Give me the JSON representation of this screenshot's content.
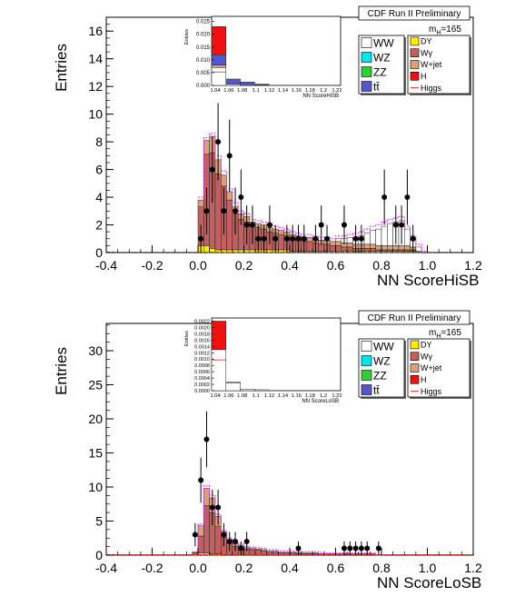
{
  "chart_data": [
    {
      "type": "bar",
      "panel": "top",
      "banner": "CDF Run II Preliminary",
      "mass_label": "m",
      "mass_sub": "H",
      "mass_value": "=165",
      "xlabel": "NN ScoreHiSB",
      "ylabel": "Entries",
      "xlim": [
        -0.4,
        1.2
      ],
      "ylim": [
        0,
        17
      ],
      "x_ticks": [
        "-0.4",
        "-0.2",
        "0.0",
        "0.2",
        "0.4",
        "0.6",
        "0.8",
        "1.0",
        "1.2"
      ],
      "y_ticks": [
        "0",
        "2",
        "4",
        "6",
        "8",
        "10",
        "12",
        "14",
        "16"
      ],
      "y_tick_values": [
        0,
        2,
        4,
        6,
        8,
        10,
        12,
        14,
        16
      ],
      "legend_left": [
        {
          "label": "WW",
          "color": "#ffffff"
        },
        {
          "label": "WZ",
          "color": "#00e5ee"
        },
        {
          "label": "ZZ",
          "color": "#33cc33"
        },
        {
          "label": "tt̄",
          "color": "#5555cc"
        }
      ],
      "legend_right": [
        {
          "label": "DY",
          "color": "#ffee00"
        },
        {
          "label": "Wγ",
          "color": "#c06060"
        },
        {
          "label": "W+jet",
          "color": "#d9a27a"
        },
        {
          "label": "H",
          "color": "#ee1111"
        },
        {
          "label": "Higgs",
          "color": "#ee3333",
          "line": true
        }
      ],
      "stack_colors": {
        "DY": "#ffee00",
        "Wgamma": "#c06060",
        "Wjet": "#d9a27a",
        "ttbar": "#5555cc",
        "WW": "#ffffff",
        "signal": "#ee1111",
        "fit": "#ee33ee"
      },
      "bin_width": 0.025,
      "bins_x": [
        0.0,
        0.025,
        0.05,
        0.075,
        0.1,
        0.125,
        0.15,
        0.175,
        0.2,
        0.225,
        0.25,
        0.275,
        0.3,
        0.325,
        0.35,
        0.375,
        0.4,
        0.425,
        0.45,
        0.475,
        0.5,
        0.525,
        0.55,
        0.575,
        0.6,
        0.625,
        0.65,
        0.675,
        0.7,
        0.725,
        0.75,
        0.775,
        0.8,
        0.825,
        0.85,
        0.875,
        0.9,
        0.925,
        0.95,
        0.975
      ],
      "dy": [
        0.5,
        0.5,
        0.3,
        0.2,
        0.2,
        0.2,
        0.2,
        0.2,
        0.2,
        0.2,
        0.2,
        0.2,
        0.2,
        0.2,
        0.2,
        0.2,
        0.1,
        0.1,
        0.1,
        0.1,
        0.1,
        0.1,
        0.1,
        0.1,
        0.1,
        0.1,
        0.1,
        0.1,
        0.1,
        0.1,
        0.1,
        0.1,
        0.1,
        0.1,
        0.1,
        0.1,
        0.1,
        0.1,
        0.0,
        0.0
      ],
      "wgamma": [
        2.8,
        6.6,
        6.9,
        5.5,
        4.6,
        3.6,
        2.6,
        2.2,
        2.0,
        1.7,
        1.6,
        1.5,
        1.3,
        1.2,
        1.1,
        1.0,
        0.9,
        0.8,
        0.7,
        0.7,
        0.6,
        0.5,
        0.5,
        0.4,
        0.4,
        0.3,
        0.3,
        0.2,
        0.2,
        0.2,
        0.2,
        0.1,
        0.1,
        0.1,
        0.1,
        0.1,
        0.1,
        0.1,
        0.0,
        0.0
      ],
      "wjet": [
        0.5,
        1.0,
        1.2,
        1.0,
        0.8,
        0.6,
        0.5,
        0.4,
        0.4,
        0.3,
        0.3,
        0.3,
        0.3,
        0.3,
        0.3,
        0.3,
        0.3,
        0.3,
        0.3,
        0.3,
        0.3,
        0.3,
        0.3,
        0.3,
        0.3,
        0.3,
        0.3,
        0.3,
        0.3,
        0.3,
        0.3,
        0.3,
        0.3,
        0.3,
        0.3,
        0.3,
        0.3,
        0.2,
        0.1,
        0.0
      ],
      "ttbar": [
        0.0,
        0.0,
        0.0,
        0.0,
        0.0,
        0.0,
        0.0,
        0.0,
        0.0,
        0.0,
        0.0,
        0.0,
        0.0,
        0.0,
        0.0,
        0.0,
        0.0,
        0.0,
        0.0,
        0.0,
        0.0,
        0.0,
        0.0,
        0.0,
        0.0,
        0.0,
        0.0,
        0.0,
        0.0,
        0.0,
        0.0,
        0.0,
        0.0,
        0.0,
        0.0,
        0.0,
        0.0,
        0.0,
        0.0,
        0.0
      ],
      "ww": [
        0.0,
        0.0,
        0.0,
        0.0,
        0.0,
        0.0,
        0.0,
        0.0,
        0.0,
        0.0,
        0.0,
        0.0,
        0.0,
        0.0,
        0.0,
        0.0,
        0.0,
        0.0,
        0.0,
        0.0,
        0.0,
        0.0,
        0.0,
        0.0,
        0.2,
        0.3,
        0.4,
        0.5,
        0.6,
        0.8,
        1.0,
        1.2,
        1.4,
        1.6,
        1.7,
        1.8,
        1.2,
        0.6,
        0.3,
        0.0
      ],
      "fit_top": [
        4.0,
        8.3,
        8.6,
        7.0,
        5.9,
        4.6,
        3.6,
        3.0,
        2.8,
        2.4,
        2.3,
        2.2,
        2.0,
        1.9,
        1.8,
        1.7,
        1.5,
        1.4,
        1.3,
        1.3,
        1.2,
        1.1,
        1.1,
        1.0,
        1.2,
        1.2,
        1.3,
        1.4,
        1.5,
        1.7,
        1.9,
        2.0,
        2.2,
        2.4,
        2.5,
        2.6,
        1.9,
        1.2,
        0.6,
        0.1
      ],
      "data_points": [
        {
          "x": 0.0125,
          "y": 1.0,
          "err": 1.0
        },
        {
          "x": 0.0375,
          "y": 3.0,
          "err": 1.7
        },
        {
          "x": 0.0625,
          "y": 6.0,
          "err": 2.4
        },
        {
          "x": 0.0875,
          "y": 8.0,
          "err": 2.8
        },
        {
          "x": 0.1125,
          "y": 3.0,
          "err": 1.7
        },
        {
          "x": 0.1375,
          "y": 7.0,
          "err": 2.6
        },
        {
          "x": 0.1625,
          "y": 3.0,
          "err": 1.7
        },
        {
          "x": 0.1875,
          "y": 4.0,
          "err": 2.0
        },
        {
          "x": 0.2125,
          "y": 2.0,
          "err": 1.4
        },
        {
          "x": 0.2375,
          "y": 2.0,
          "err": 1.4
        },
        {
          "x": 0.2625,
          "y": 1.0,
          "err": 1.0
        },
        {
          "x": 0.2875,
          "y": 1.0,
          "err": 1.0
        },
        {
          "x": 0.3125,
          "y": 2.0,
          "err": 1.4
        },
        {
          "x": 0.3375,
          "y": 1.0,
          "err": 1.0
        },
        {
          "x": 0.3875,
          "y": 1.0,
          "err": 1.0
        },
        {
          "x": 0.4125,
          "y": 1.0,
          "err": 1.0
        },
        {
          "x": 0.4375,
          "y": 1.0,
          "err": 1.0
        },
        {
          "x": 0.4625,
          "y": 1.0,
          "err": 1.0
        },
        {
          "x": 0.5125,
          "y": 1.0,
          "err": 1.0
        },
        {
          "x": 0.5375,
          "y": 2.0,
          "err": 1.4
        },
        {
          "x": 0.5625,
          "y": 1.0,
          "err": 1.0
        },
        {
          "x": 0.6375,
          "y": 2.0,
          "err": 1.4
        },
        {
          "x": 0.6875,
          "y": 1.0,
          "err": 1.0
        },
        {
          "x": 0.7125,
          "y": 1.0,
          "err": 1.0
        },
        {
          "x": 0.8125,
          "y": 4.0,
          "err": 2.0
        },
        {
          "x": 0.8625,
          "y": 2.0,
          "err": 1.4
        },
        {
          "x": 0.8875,
          "y": 2.0,
          "err": 1.4
        },
        {
          "x": 0.9125,
          "y": 4.0,
          "err": 2.0
        },
        {
          "x": 0.9375,
          "y": 1.0,
          "err": 1.0
        }
      ],
      "inset": {
        "ylabel": "Entries",
        "xlabel": "NN ScoreHiSB",
        "ylim": [
          0,
          0.027
        ],
        "y_ticks": [
          "0.000",
          "0.005",
          "0.010",
          "0.015",
          "0.020",
          "0.025"
        ],
        "y_tick_values": [
          0.0,
          0.005,
          0.01,
          0.015,
          0.02,
          0.025
        ],
        "x_ticks": [
          "1.04",
          "1.06",
          "1.08",
          "1.1",
          "1.12",
          "1.14",
          "1.16",
          "1.18",
          "1.2",
          "1.22"
        ],
        "bins": [
          {
            "other": 0.007,
            "wjet": 0.001,
            "ttbar": 0.004,
            "signal": 0.011
          },
          {
            "other": 0.0005,
            "wjet": 0.0,
            "ttbar": 0.002,
            "signal": 0.0
          },
          {
            "other": 0.0003,
            "wjet": 0.0,
            "ttbar": 0.001,
            "signal": 0.0
          },
          {
            "other": 0.0002,
            "wjet": 0.0,
            "ttbar": 0.0003,
            "signal": 0.0
          },
          {
            "other": 0.0,
            "wjet": 0.0,
            "ttbar": 0.0,
            "signal": 0.0
          },
          {
            "other": 0.0,
            "wjet": 0.0,
            "ttbar": 0.0,
            "signal": 0.0
          },
          {
            "other": 0.0,
            "wjet": 0.0,
            "ttbar": 0.0,
            "signal": 0.0
          },
          {
            "other": 0.0,
            "wjet": 0.0,
            "ttbar": 0.0,
            "signal": 0.0
          },
          {
            "other": 0.0,
            "wjet": 0.0,
            "ttbar": 0.0,
            "signal": 0.0
          }
        ]
      }
    },
    {
      "type": "bar",
      "panel": "bottom",
      "banner": "CDF Run II Preliminary",
      "mass_label": "m",
      "mass_sub": "H",
      "mass_value": "=165",
      "xlabel": "NN ScoreLoSB",
      "ylabel": "Entries",
      "xlim": [
        -0.4,
        1.2
      ],
      "ylim": [
        0,
        34
      ],
      "x_ticks": [
        "-0.4",
        "-0.2",
        "0.0",
        "0.2",
        "0.4",
        "0.6",
        "0.8",
        "1.0",
        "1.2"
      ],
      "y_ticks": [
        "0",
        "5",
        "10",
        "15",
        "20",
        "25",
        "30"
      ],
      "y_tick_values": [
        0,
        5,
        10,
        15,
        20,
        25,
        30
      ],
      "legend_left": [
        {
          "label": "WW",
          "color": "#ffffff"
        },
        {
          "label": "WZ",
          "color": "#00e5ee"
        },
        {
          "label": "ZZ",
          "color": "#33cc33"
        },
        {
          "label": "tt̄",
          "color": "#5555cc"
        }
      ],
      "legend_right": [
        {
          "label": "DY",
          "color": "#ffee00"
        },
        {
          "label": "Wγ",
          "color": "#c06060"
        },
        {
          "label": "W+jet",
          "color": "#d9a27a"
        },
        {
          "label": "H",
          "color": "#ee1111"
        },
        {
          "label": "Higgs",
          "color": "#ee3333",
          "line": true
        }
      ],
      "stack_colors": {
        "DY": "#ffee00",
        "Wgamma": "#c06060",
        "Wjet": "#d9a27a",
        "ttbar": "#5555cc",
        "WW": "#ffffff",
        "signal": "#ee1111",
        "fit": "#ee33ee"
      },
      "bin_width": 0.025,
      "bins_x": [
        -0.025,
        0.0,
        0.025,
        0.05,
        0.075,
        0.1,
        0.125,
        0.15,
        0.175,
        0.2,
        0.225,
        0.25,
        0.275,
        0.3,
        0.325,
        0.35,
        0.375,
        0.4,
        0.425,
        0.45,
        0.475,
        0.5,
        0.525,
        0.55,
        0.575,
        0.6,
        0.625,
        0.65,
        0.675,
        0.7,
        0.725,
        0.75,
        0.775
      ],
      "dy": [
        0.0,
        0.3,
        0.3,
        0.2,
        0.2,
        0.1,
        0.1,
        0.1,
        0.1,
        0.1,
        0.1,
        0.1,
        0.1,
        0.0,
        0.0,
        0.0,
        0.0,
        0.0,
        0.0,
        0.0,
        0.0,
        0.0,
        0.0,
        0.0,
        0.0,
        0.0,
        0.0,
        0.0,
        0.0,
        0.0,
        0.0,
        0.0,
        0.0
      ],
      "wgamma": [
        0.3,
        2.5,
        7.0,
        6.0,
        4.0,
        2.5,
        1.7,
        1.2,
        1.0,
        0.8,
        0.7,
        0.6,
        0.5,
        0.4,
        0.4,
        0.3,
        0.3,
        0.3,
        0.2,
        0.2,
        0.2,
        0.2,
        0.1,
        0.1,
        0.1,
        0.1,
        0.1,
        0.1,
        0.1,
        0.1,
        0.1,
        0.1,
        0.0
      ],
      "wjet": [
        0.1,
        1.5,
        2.5,
        2.2,
        1.5,
        0.8,
        0.5,
        0.4,
        0.3,
        0.2,
        0.2,
        0.2,
        0.2,
        0.2,
        0.2,
        0.1,
        0.1,
        0.1,
        0.1,
        0.1,
        0.1,
        0.1,
        0.1,
        0.1,
        0.1,
        0.1,
        0.1,
        0.1,
        0.1,
        0.1,
        0.1,
        0.1,
        0.0
      ],
      "ttbar": [
        0.0,
        0.0,
        0.0,
        0.0,
        0.0,
        0.0,
        0.0,
        0.0,
        0.0,
        0.0,
        0.0,
        0.0,
        0.0,
        0.0,
        0.0,
        0.0,
        0.0,
        0.0,
        0.0,
        0.0,
        0.0,
        0.0,
        0.0,
        0.0,
        0.0,
        0.0,
        0.0,
        0.0,
        0.0,
        0.0,
        0.0,
        0.0,
        0.0
      ],
      "ww": [
        0.0,
        0.0,
        0.0,
        0.0,
        0.0,
        0.0,
        0.0,
        0.0,
        0.0,
        0.0,
        0.0,
        0.0,
        0.0,
        0.0,
        0.0,
        0.0,
        0.0,
        0.0,
        0.0,
        0.0,
        0.0,
        0.0,
        0.0,
        0.0,
        0.0,
        0.0,
        0.0,
        0.0,
        0.0,
        0.0,
        0.0,
        0.0,
        0.0
      ],
      "fit_top": [
        0.5,
        4.6,
        10.2,
        8.8,
        6.0,
        3.6,
        2.5,
        1.9,
        1.6,
        1.3,
        1.2,
        1.1,
        1.0,
        0.8,
        0.8,
        0.6,
        0.6,
        0.6,
        0.5,
        0.5,
        0.5,
        0.5,
        0.4,
        0.3,
        0.3,
        0.3,
        0.3,
        0.3,
        0.3,
        0.3,
        0.3,
        0.3,
        0.0
      ],
      "data_points": [
        {
          "x": -0.0125,
          "y": 3.0,
          "err": 1.7
        },
        {
          "x": 0.0125,
          "y": 11.0,
          "err": 3.3
        },
        {
          "x": 0.0375,
          "y": 17.0,
          "err": 4.1
        },
        {
          "x": 0.0625,
          "y": 7.0,
          "err": 2.6
        },
        {
          "x": 0.0875,
          "y": 7.0,
          "err": 2.6
        },
        {
          "x": 0.1125,
          "y": 3.0,
          "err": 1.7
        },
        {
          "x": 0.1375,
          "y": 2.0,
          "err": 1.4
        },
        {
          "x": 0.1625,
          "y": 2.0,
          "err": 1.4
        },
        {
          "x": 0.1875,
          "y": 1.0,
          "err": 1.0
        },
        {
          "x": 0.2125,
          "y": 2.0,
          "err": 1.4
        },
        {
          "x": 0.4375,
          "y": 1.0,
          "err": 1.0
        },
        {
          "x": 0.6375,
          "y": 1.0,
          "err": 1.0
        },
        {
          "x": 0.6625,
          "y": 1.0,
          "err": 1.0
        },
        {
          "x": 0.6875,
          "y": 1.0,
          "err": 1.0
        },
        {
          "x": 0.7125,
          "y": 1.0,
          "err": 1.0
        },
        {
          "x": 0.7375,
          "y": 1.0,
          "err": 1.0
        },
        {
          "x": 0.7875,
          "y": 1.0,
          "err": 1.0
        }
      ],
      "inset": {
        "ylabel": "Entries",
        "xlabel": "NN ScoreLoSB",
        "ylim": [
          0,
          0.0023
        ],
        "y_ticks": [
          "0.0000",
          "0.0002",
          "0.0004",
          "0.0006",
          "0.0008",
          "0.0010",
          "0.0012",
          "0.0014",
          "0.0016",
          "0.0018",
          "0.0020",
          "0.0022"
        ],
        "y_tick_values": [
          0.0,
          0.0002,
          0.0004,
          0.0006,
          0.0008,
          0.001,
          0.0012,
          0.0014,
          0.0016,
          0.0018,
          0.002,
          0.0022
        ],
        "x_ticks": [
          "1.04",
          "1.06",
          "1.08",
          "1.1",
          "1.12",
          "1.14",
          "1.16",
          "1.18",
          "1.2",
          "1.22"
        ],
        "bins": [
          {
            "other": 0.0013,
            "wjet": 0.0,
            "ttbar": 0.0,
            "signal": 0.0009
          },
          {
            "other": 0.00025,
            "wjet": 2e-05,
            "ttbar": 0.0,
            "signal": 0.0
          },
          {
            "other": 5e-05,
            "wjet": 0.0,
            "ttbar": 0.0,
            "signal": 0.0
          },
          {
            "other": 3e-05,
            "wjet": 0.0,
            "ttbar": 0.0,
            "signal": 0.0
          },
          {
            "other": 0.0,
            "wjet": 0.0,
            "ttbar": 0.0,
            "signal": 0.0
          },
          {
            "other": 0.0,
            "wjet": 0.0,
            "ttbar": 0.0,
            "signal": 0.0
          },
          {
            "other": 0.0,
            "wjet": 0.0,
            "ttbar": 0.0,
            "signal": 0.0
          },
          {
            "other": 0.0,
            "wjet": 0.0,
            "ttbar": 0.0,
            "signal": 0.0
          },
          {
            "other": 0.0,
            "wjet": 0.0,
            "ttbar": 0.0,
            "signal": 0.0
          }
        ]
      }
    }
  ]
}
